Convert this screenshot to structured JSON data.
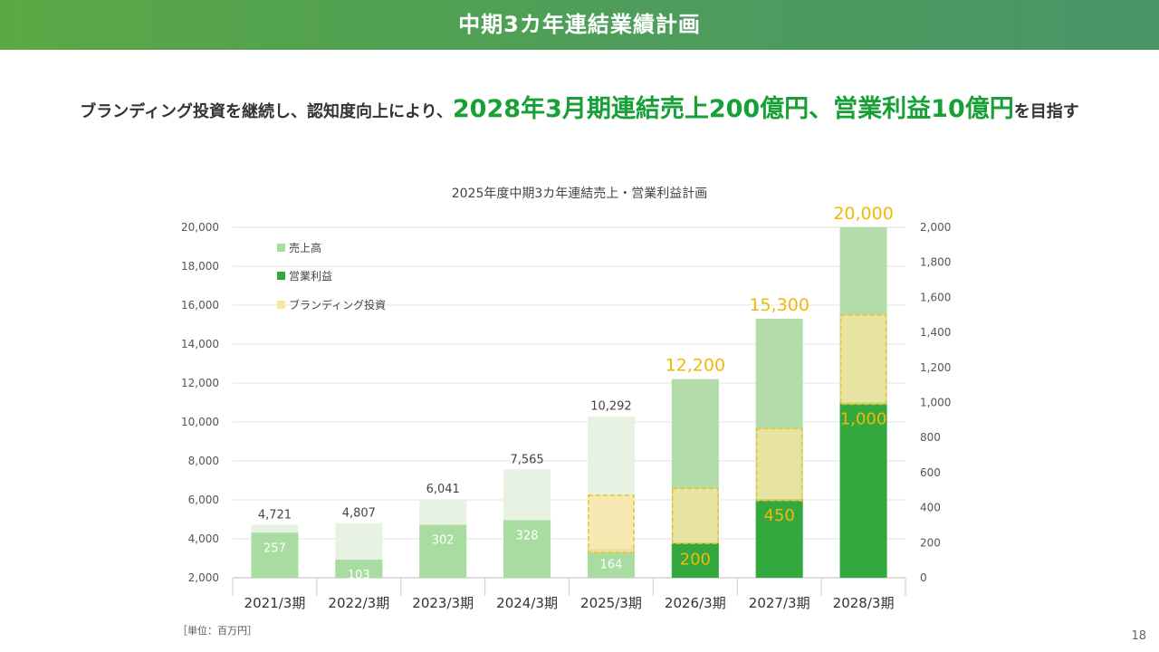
{
  "header": {
    "title": "中期3カ年連結業績計画"
  },
  "headline": {
    "pre": "ブランディング投資を継続し、認知度向上により、",
    "emphasis": "2028年3月期連結売上200億円、営業利益10億円",
    "post": "を目指す"
  },
  "unit_note": "［単位：百万円］",
  "page_number": "18",
  "colors": {
    "header": "#55a64f",
    "sales_actual": "#e8f2e3",
    "sales_plan": "#b2dcaa",
    "op_profit_actual": "#a8dca0",
    "op_profit_plan": "#33a83d",
    "branding_fill": "#fbe6a0",
    "branding_border": "#f0c21e",
    "highlight_label": "#f0b90a"
  },
  "chart_data": {
    "type": "bar",
    "title": "2025年度中期3カ年連結売上・営業利益計画",
    "categories": [
      "2021/3期",
      "2022/3期",
      "2023/3期",
      "2024/3期",
      "2025/3期",
      "2026/3期",
      "2027/3期",
      "2028/3期"
    ],
    "left_axis": {
      "ylim": [
        2000,
        20000
      ],
      "ticks": [
        "2,000",
        "4,000",
        "6,000",
        "8,000",
        "10,000",
        "12,000",
        "14,000",
        "16,000",
        "18,000",
        "20,000"
      ]
    },
    "right_axis": {
      "ylim": [
        0,
        2000
      ],
      "ticks": [
        "0",
        "200",
        "400",
        "600",
        "800",
        "1,000",
        "1,200",
        "1,400",
        "1,600",
        "1,800",
        "2,000"
      ]
    },
    "legend": {
      "placement": "top-left",
      "items": [
        "売上高",
        "営業利益",
        "ブランディング投資"
      ]
    },
    "series": [
      {
        "name": "売上高",
        "axis": "left",
        "values": [
          4721,
          4807,
          6041,
          7565,
          10292,
          12200,
          15300,
          20000
        ],
        "labels": [
          "4,721",
          "4,807",
          "6,041",
          "7,565",
          "10,292",
          "12,200",
          "15,300",
          "20,000"
        ]
      },
      {
        "name": "営業利益",
        "axis": "right",
        "values": [
          257,
          103,
          302,
          328,
          164,
          200,
          450,
          1000
        ],
        "labels": [
          "257",
          "103",
          "302",
          "328",
          "164",
          "200",
          "450",
          "1,000"
        ]
      },
      {
        "name": "ブランディング投資",
        "axis": "right",
        "ranges": [
          null,
          null,
          null,
          null,
          [
            144,
            470
          ],
          [
            196,
            510
          ],
          [
            440,
            850
          ],
          [
            990,
            1500
          ]
        ]
      }
    ]
  }
}
